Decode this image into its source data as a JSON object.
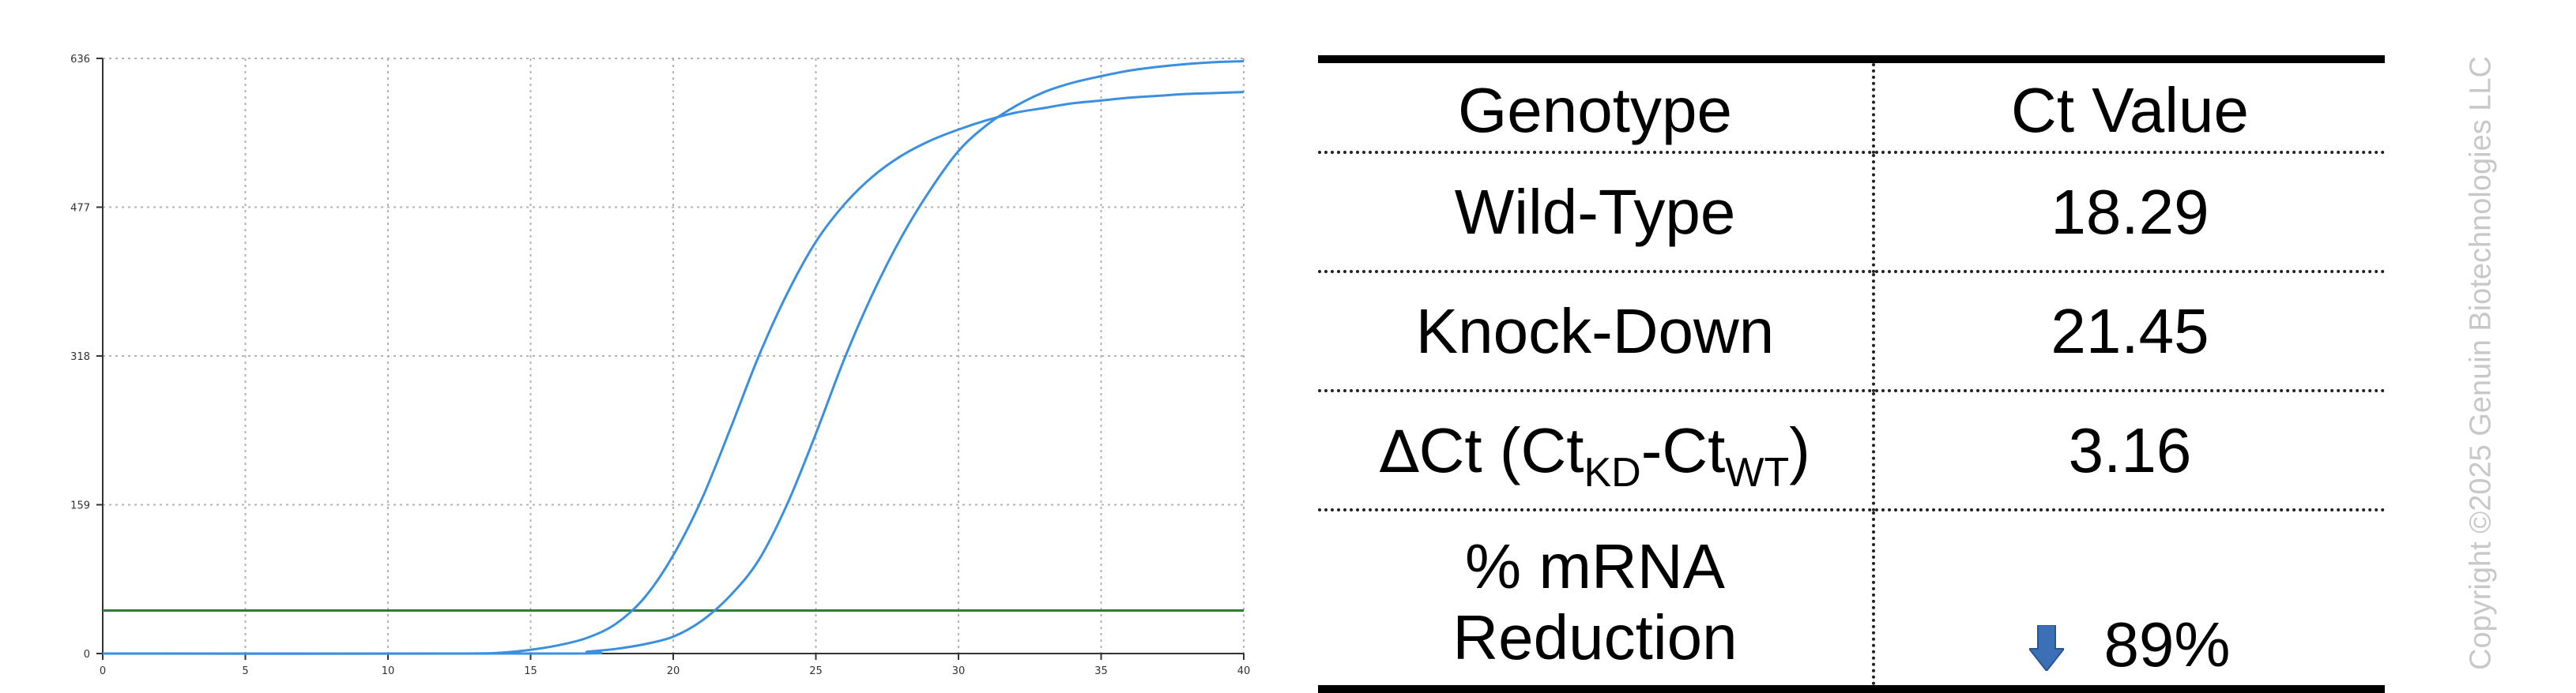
{
  "chart_data": {
    "type": "line",
    "title": "",
    "xlabel": "",
    "ylabel": "",
    "xlim": [
      0,
      40
    ],
    "ylim": [
      0,
      636
    ],
    "x_ticks": [
      0,
      5,
      10,
      15,
      20,
      25,
      30,
      35,
      40
    ],
    "y_ticks": [
      0,
      159,
      318,
      477,
      636
    ],
    "grid": true,
    "threshold": {
      "value": 46,
      "color": "#2e7d32"
    },
    "series": [
      {
        "color": "#3a8fe0",
        "x": [
          0,
          12,
          14,
          15,
          16,
          17,
          18,
          19,
          20,
          21,
          22,
          23,
          24,
          25,
          26,
          27,
          28,
          29,
          30,
          31,
          32,
          33,
          34,
          35,
          36,
          37,
          38,
          39,
          40
        ],
        "y": [
          0,
          0,
          1,
          4,
          9,
          17,
          32,
          60,
          105,
          165,
          240,
          318,
          385,
          440,
          480,
          510,
          532,
          548,
          560,
          570,
          578,
          583,
          588,
          591,
          594,
          596,
          598,
          599,
          600
        ]
      },
      {
        "color": "#3a8fe0",
        "x": [
          0,
          16,
          17,
          18,
          19,
          20,
          21,
          22,
          23,
          24,
          25,
          26,
          27,
          28,
          29,
          30,
          31,
          32,
          33,
          34,
          35,
          36,
          37,
          38,
          39,
          40
        ],
        "y": [
          0,
          0,
          2,
          5,
          10,
          18,
          35,
          62,
          100,
          160,
          235,
          315,
          385,
          445,
          495,
          537,
          565,
          585,
          600,
          610,
          617,
          623,
          627,
          630,
          632,
          633
        ]
      }
    ]
  },
  "table": {
    "header": {
      "c1": "Genotype",
      "c2": "Ct Value"
    },
    "rows": [
      {
        "label": "Wild-Type",
        "value": "18.29"
      },
      {
        "label": "Knock-Down",
        "value": "21.45"
      }
    ],
    "delta_row": {
      "delta_symbol": "∆",
      "label_main": "Ct (Ct",
      "sub_kd": "KD",
      "dash": "-Ct",
      "sub_wt": "WT",
      "close": ")",
      "value": "3.16"
    },
    "reduction_row": {
      "label_line1": "% mRNA",
      "label_line2": "Reduction",
      "value": "89%",
      "icon": "down-arrow-icon",
      "icon_color": "#3b6fb6"
    }
  },
  "copyright": "Copyright ©2025 Genuin Biotechnologies LLC"
}
